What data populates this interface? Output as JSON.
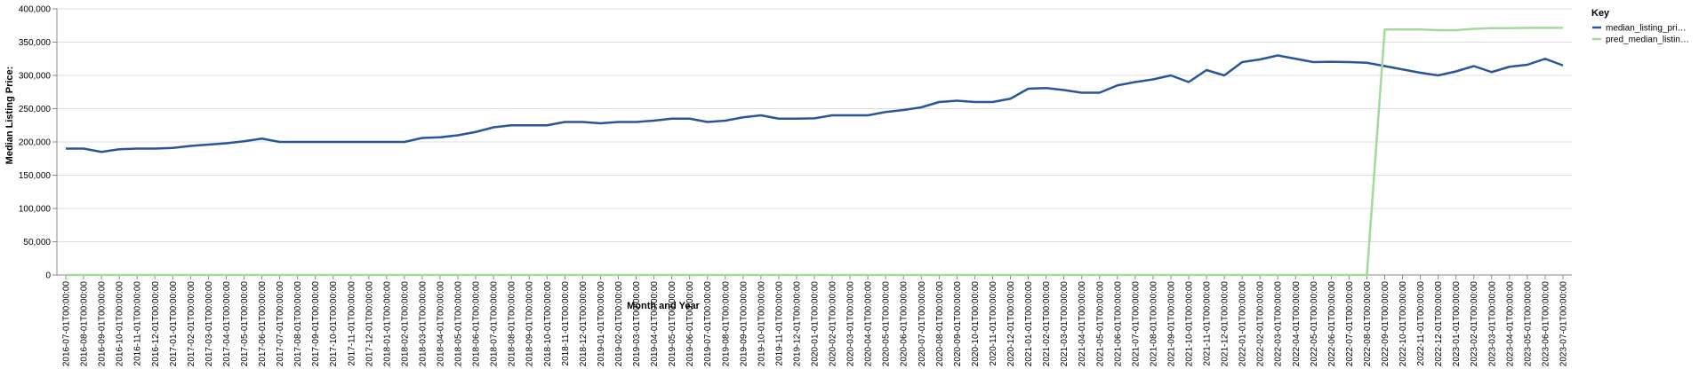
{
  "chart_data": {
    "type": "line",
    "xlabel": "Month and Year",
    "ylabel": "Median Listing Price:",
    "legend_title": "Key",
    "legend": "right",
    "grid": true,
    "categories": [
      "2016-07-01T00:00:00",
      "2016-08-01T00:00:00",
      "2016-09-01T00:00:00",
      "2016-10-01T00:00:00",
      "2016-11-01T00:00:00",
      "2016-12-01T00:00:00",
      "2017-01-01T00:00:00",
      "2017-02-01T00:00:00",
      "2017-03-01T00:00:00",
      "2017-04-01T00:00:00",
      "2017-05-01T00:00:00",
      "2017-06-01T00:00:00",
      "2017-07-01T00:00:00",
      "2017-08-01T00:00:00",
      "2017-09-01T00:00:00",
      "2017-10-01T00:00:00",
      "2017-11-01T00:00:00",
      "2017-12-01T00:00:00",
      "2018-01-01T00:00:00",
      "2018-02-01T00:00:00",
      "2018-03-01T00:00:00",
      "2018-04-01T00:00:00",
      "2018-05-01T00:00:00",
      "2018-06-01T00:00:00",
      "2018-07-01T00:00:00",
      "2018-08-01T00:00:00",
      "2018-09-01T00:00:00",
      "2018-10-01T00:00:00",
      "2018-11-01T00:00:00",
      "2018-12-01T00:00:00",
      "2019-01-01T00:00:00",
      "2019-02-01T00:00:00",
      "2019-03-01T00:00:00",
      "2019-04-01T00:00:00",
      "2019-05-01T00:00:00",
      "2019-06-01T00:00:00",
      "2019-07-01T00:00:00",
      "2019-08-01T00:00:00",
      "2019-09-01T00:00:00",
      "2019-10-01T00:00:00",
      "2019-11-01T00:00:00",
      "2019-12-01T00:00:00",
      "2020-01-01T00:00:00",
      "2020-02-01T00:00:00",
      "2020-03-01T00:00:00",
      "2020-04-01T00:00:00",
      "2020-05-01T00:00:00",
      "2020-06-01T00:00:00",
      "2020-07-01T00:00:00",
      "2020-08-01T00:00:00",
      "2020-09-01T00:00:00",
      "2020-10-01T00:00:00",
      "2020-11-01T00:00:00",
      "2020-12-01T00:00:00",
      "2021-01-01T00:00:00",
      "2021-02-01T00:00:00",
      "2021-03-01T00:00:00",
      "2021-04-01T00:00:00",
      "2021-05-01T00:00:00",
      "2021-06-01T00:00:00",
      "2021-07-01T00:00:00",
      "2021-08-01T00:00:00",
      "2021-09-01T00:00:00",
      "2021-10-01T00:00:00",
      "2021-11-01T00:00:00",
      "2021-12-01T00:00:00",
      "2022-01-01T00:00:00",
      "2022-02-01T00:00:00",
      "2022-03-01T00:00:00",
      "2022-04-01T00:00:00",
      "2022-05-01T00:00:00",
      "2022-06-01T00:00:00",
      "2022-07-01T00:00:00",
      "2022-08-01T00:00:00",
      "2022-09-01T00:00:00",
      "2022-10-01T00:00:00",
      "2022-11-01T00:00:00",
      "2022-12-01T00:00:00",
      "2023-01-01T00:00:00",
      "2023-02-01T00:00:00",
      "2023-03-01T00:00:00",
      "2023-04-01T00:00:00",
      "2023-05-01T00:00:00",
      "2023-06-01T00:00:00",
      "2023-07-01T00:00:00"
    ],
    "series": [
      {
        "name": "median_listing_pri…",
        "color": "#2a5699",
        "values": [
          190000,
          190000,
          185000,
          189000,
          190000,
          190000,
          191000,
          194000,
          196000,
          198000,
          201000,
          205000,
          200000,
          200000,
          200000,
          200000,
          200000,
          200000,
          200000,
          200000,
          206000,
          207000,
          210000,
          215000,
          222000,
          225000,
          225000,
          225000,
          230000,
          230000,
          228000,
          230000,
          230000,
          232000,
          235000,
          235000,
          230000,
          232000,
          237000,
          240000,
          235000,
          235000,
          235500,
          240000,
          240000,
          240000,
          245000,
          248000,
          252000,
          260000,
          262000,
          260000,
          260000,
          265000,
          280000,
          281000,
          278000,
          274000,
          274000,
          285000,
          290000,
          294000,
          300000,
          290000,
          308000,
          300000,
          320000,
          324000,
          330000,
          325000,
          320000,
          320500,
          320000,
          319000,
          314000,
          309000,
          304000,
          300000,
          306000,
          314000,
          305000,
          313000,
          316000,
          325000,
          315000
        ]
      },
      {
        "name": "pred_median_listin…",
        "color": "#a3d99b",
        "values": [
          0,
          0,
          0,
          0,
          0,
          0,
          0,
          0,
          0,
          0,
          0,
          0,
          0,
          0,
          0,
          0,
          0,
          0,
          0,
          0,
          0,
          0,
          0,
          0,
          0,
          0,
          0,
          0,
          0,
          0,
          0,
          0,
          0,
          0,
          0,
          0,
          0,
          0,
          0,
          0,
          0,
          0,
          0,
          0,
          0,
          0,
          0,
          0,
          0,
          0,
          0,
          0,
          0,
          0,
          0,
          0,
          0,
          0,
          0,
          0,
          0,
          0,
          0,
          0,
          0,
          0,
          0,
          0,
          0,
          0,
          0,
          0,
          0,
          0,
          369000,
          369000,
          369000,
          368000,
          368000,
          370000,
          371000,
          371000,
          371500,
          371500,
          371500
        ]
      }
    ],
    "ylim": [
      0,
      400000
    ],
    "yticks": [
      0,
      {
        "value": 50000,
        "label": "50,000"
      },
      {
        "value": 100000,
        "label": "100,000"
      },
      {
        "value": 150000,
        "label": "150,000"
      },
      {
        "value": 200000,
        "label": "200,000"
      },
      {
        "value": 250000,
        "label": "250,000"
      },
      {
        "value": 300000,
        "label": "300,000"
      },
      {
        "value": 350000,
        "label": "350,000"
      },
      {
        "value": 400000,
        "label": "400,000"
      }
    ]
  }
}
